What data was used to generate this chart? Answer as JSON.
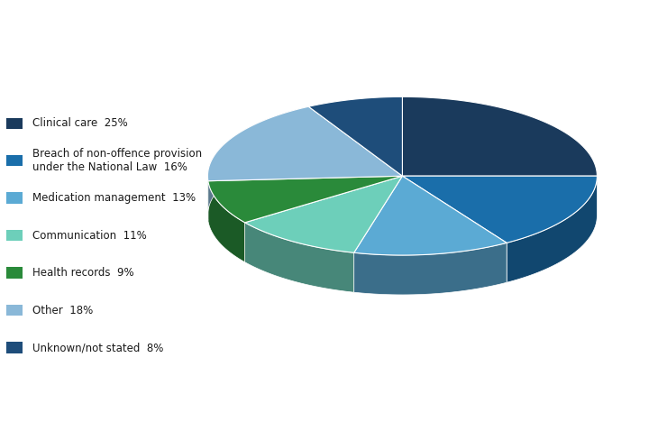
{
  "labels": [
    "Clinical care",
    "Breach of non-offence provision\nunder the National Law",
    "Medication management",
    "Communication",
    "Health records",
    "Other",
    "Unknown/not stated"
  ],
  "pct_labels": [
    "Clinical care  25%",
    "Breach of non-offence provision\nunder the National Law  16%",
    "Medication management  13%",
    "Communication  11%",
    "Health records  9%",
    "Other  18%",
    "Unknown/not stated  8%"
  ],
  "values": [
    25,
    16,
    13,
    11,
    9,
    18,
    8
  ],
  "colors": [
    "#1a3a5c",
    "#1a6eaa",
    "#5baad4",
    "#6dcfba",
    "#2a8a3a",
    "#8ab8d8",
    "#1e4d7a"
  ],
  "startangle": 90,
  "background_color": "#ffffff",
  "legend_fontsize": 9,
  "figsize": [
    7.2,
    4.88
  ],
  "depth": 0.12
}
